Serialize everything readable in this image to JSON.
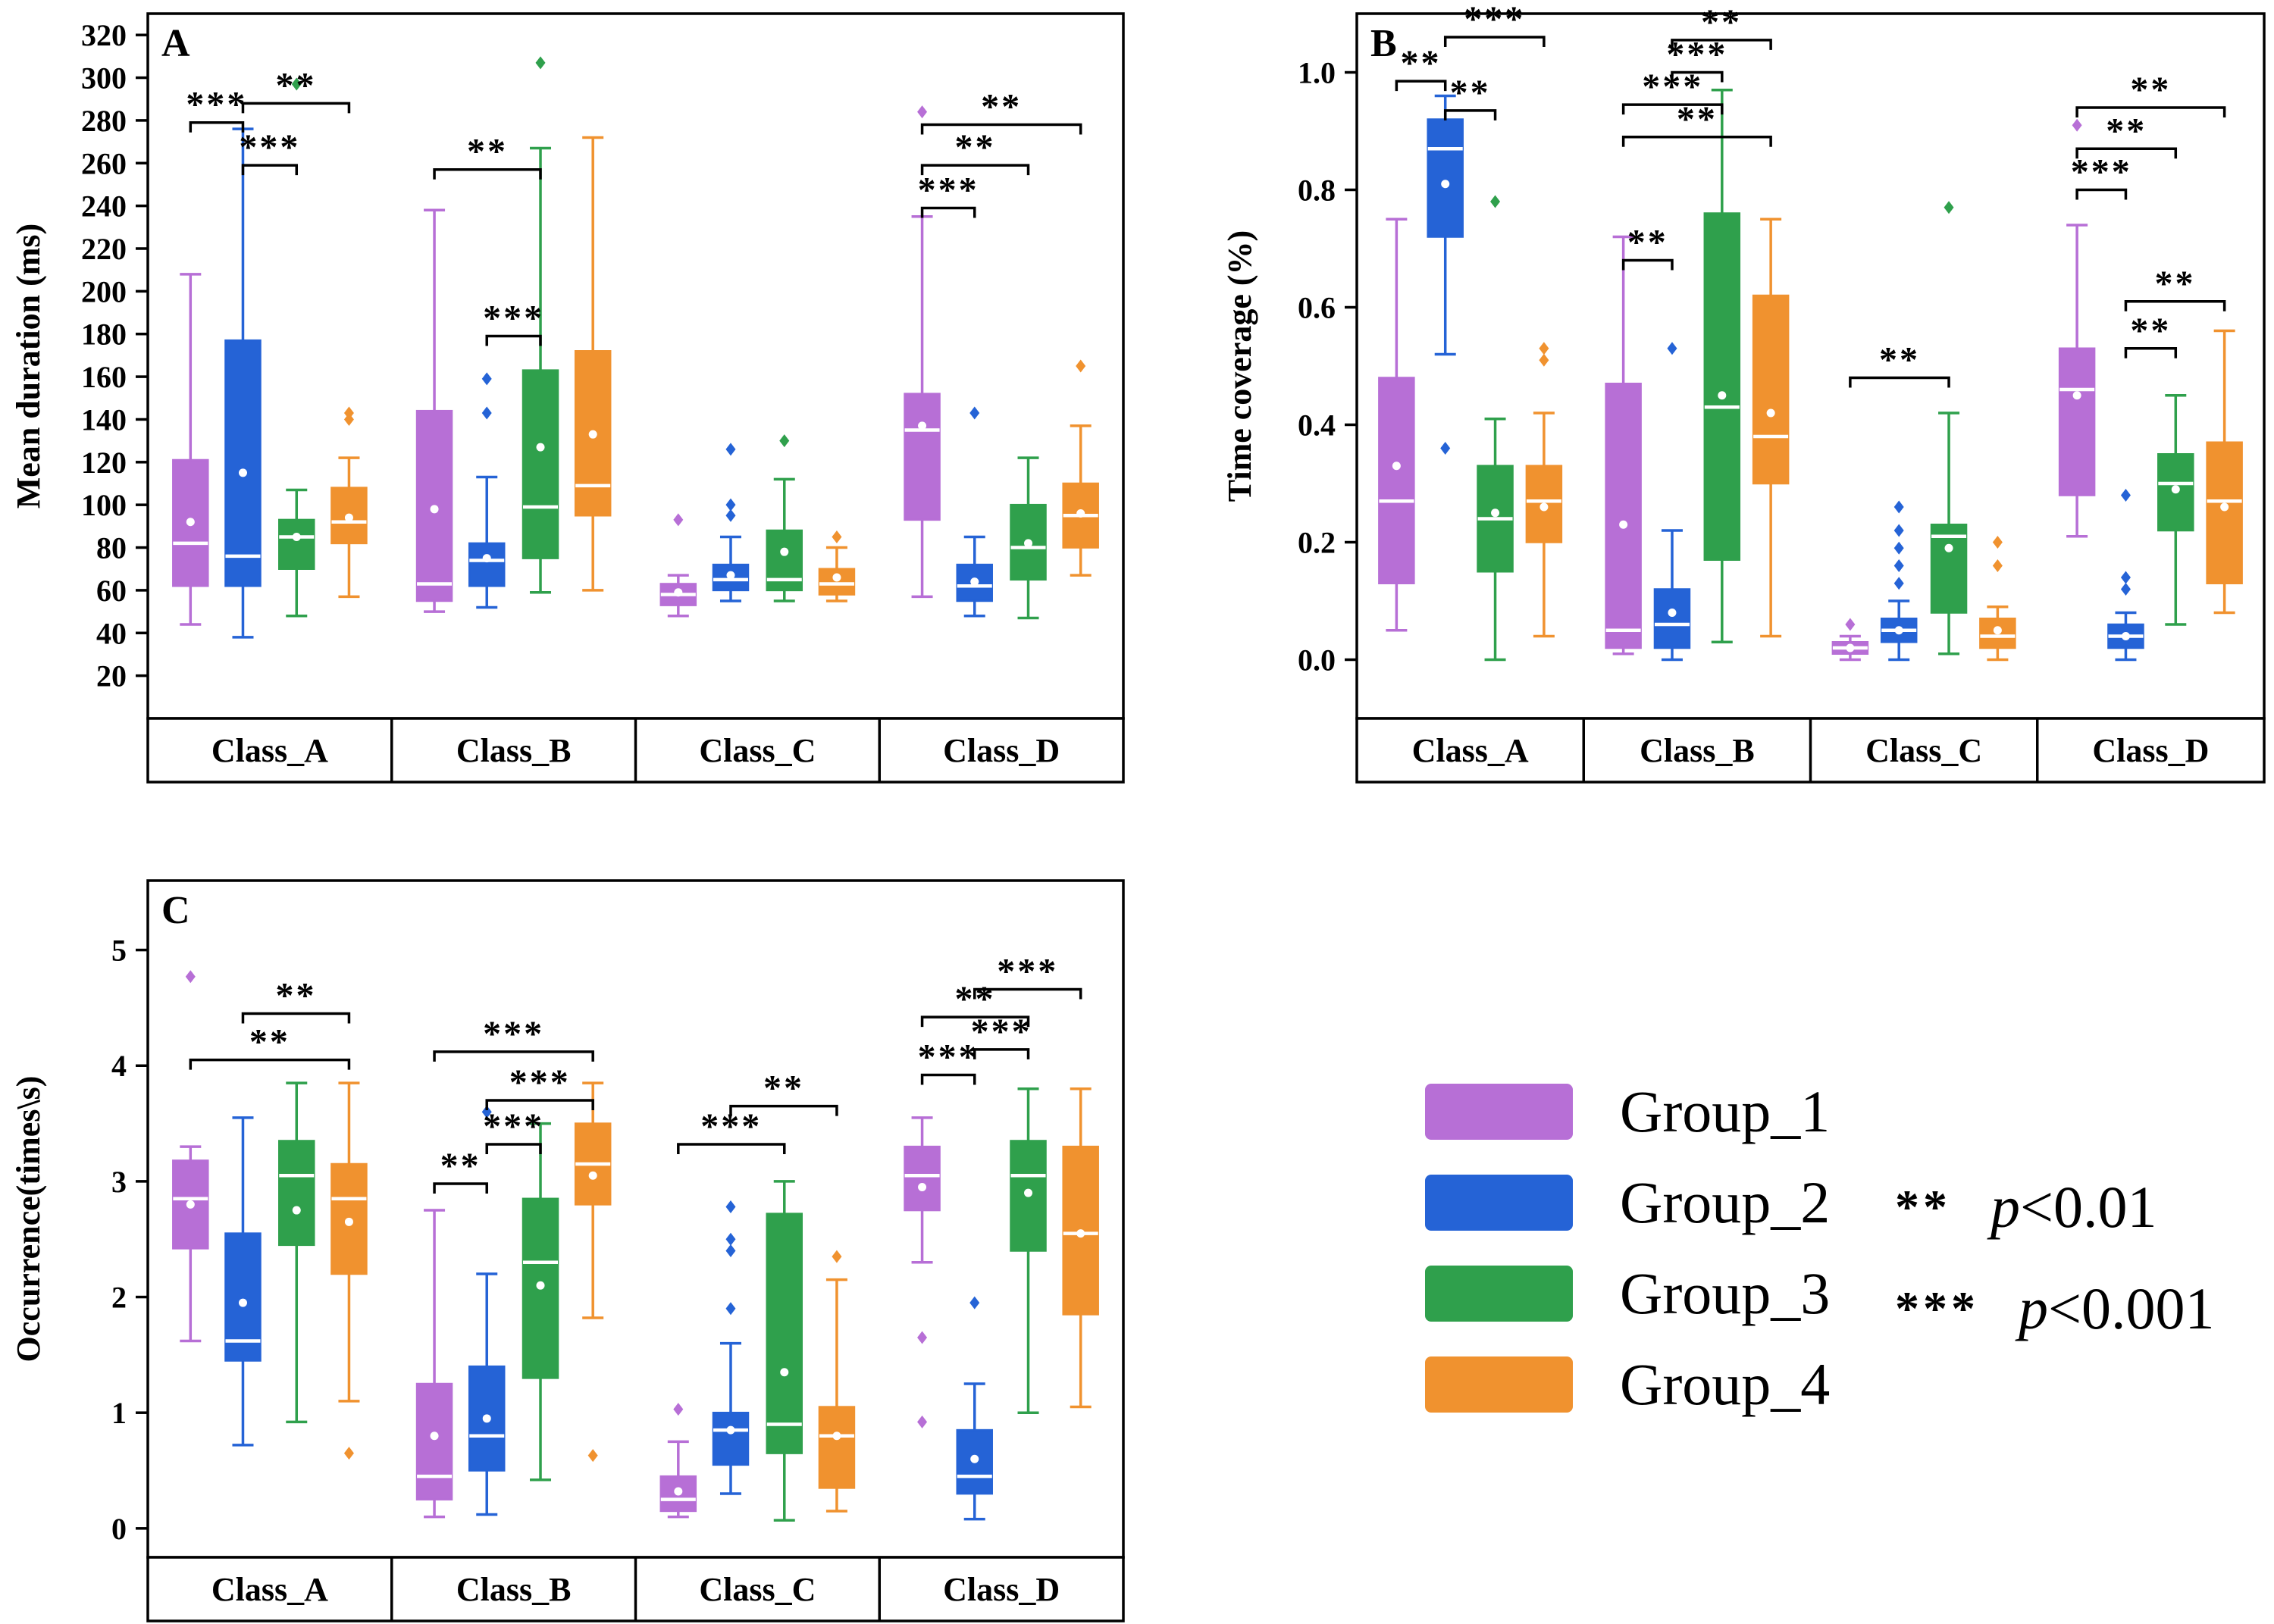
{
  "legend": {
    "items": [
      {
        "label": "Group_1",
        "color": "#B76FD6"
      },
      {
        "label": "Group_2",
        "color": "#2563D6"
      },
      {
        "label": "Group_3",
        "color": "#2FA04C"
      },
      {
        "label": "Group_4",
        "color": "#F0922F"
      }
    ],
    "significance": [
      {
        "symbol": "**",
        "p": "p",
        "rest": "<0.01"
      },
      {
        "symbol": "***",
        "p": "p",
        "rest": "<0.001"
      }
    ]
  },
  "chart_data": [
    {
      "type": "box",
      "panel_label": "A",
      "ylabel": "Mean duration (ms)",
      "ylim": [
        0,
        330
      ],
      "yticks": [
        20,
        40,
        60,
        80,
        100,
        120,
        140,
        160,
        180,
        200,
        220,
        240,
        260,
        280,
        300,
        320
      ],
      "categories": [
        "Class_A",
        "Class_B",
        "Class_C",
        "Class_D"
      ],
      "series": [
        {
          "name": "Group_1",
          "color": "#B76FD6",
          "data": [
            {
              "lo": 44,
              "q1": 62,
              "med": 82,
              "q3": 121,
              "hi": 208,
              "mean": 92,
              "out": []
            },
            {
              "lo": 50,
              "q1": 55,
              "med": 63,
              "q3": 144,
              "hi": 238,
              "mean": 98,
              "out": []
            },
            {
              "lo": 48,
              "q1": 53,
              "med": 58,
              "q3": 63,
              "hi": 67,
              "mean": 59,
              "out": [
                93
              ]
            },
            {
              "lo": 57,
              "q1": 93,
              "med": 135,
              "q3": 152,
              "hi": 235,
              "mean": 137,
              "out": [
                284
              ]
            }
          ]
        },
        {
          "name": "Group_2",
          "color": "#2563D6",
          "data": [
            {
              "lo": 38,
              "q1": 62,
              "med": 76,
              "q3": 177,
              "hi": 276,
              "mean": 115,
              "out": []
            },
            {
              "lo": 52,
              "q1": 62,
              "med": 74,
              "q3": 82,
              "hi": 113,
              "mean": 75,
              "out": [
                143,
                159
              ]
            },
            {
              "lo": 55,
              "q1": 60,
              "med": 65,
              "q3": 72,
              "hi": 85,
              "mean": 67,
              "out": [
                95,
                100,
                126
              ]
            },
            {
              "lo": 48,
              "q1": 55,
              "med": 62,
              "q3": 72,
              "hi": 85,
              "mean": 64,
              "out": [
                143
              ]
            }
          ]
        },
        {
          "name": "Group_3",
          "color": "#2FA04C",
          "data": [
            {
              "lo": 48,
              "q1": 70,
              "med": 85,
              "q3": 93,
              "hi": 107,
              "mean": 85,
              "out": [
                297
              ]
            },
            {
              "lo": 59,
              "q1": 75,
              "med": 99,
              "q3": 163,
              "hi": 267,
              "mean": 127,
              "out": [
                307
              ]
            },
            {
              "lo": 55,
              "q1": 60,
              "med": 65,
              "q3": 88,
              "hi": 112,
              "mean": 78,
              "out": [
                130
              ]
            },
            {
              "lo": 47,
              "q1": 65,
              "med": 80,
              "q3": 100,
              "hi": 122,
              "mean": 82,
              "out": []
            }
          ]
        },
        {
          "name": "Group_4",
          "color": "#F0922F",
          "data": [
            {
              "lo": 57,
              "q1": 82,
              "med": 92,
              "q3": 108,
              "hi": 122,
              "mean": 94,
              "out": [
                140,
                143
              ]
            },
            {
              "lo": 60,
              "q1": 95,
              "med": 109,
              "q3": 172,
              "hi": 272,
              "mean": 133,
              "out": []
            },
            {
              "lo": 55,
              "q1": 58,
              "med": 63,
              "q3": 70,
              "hi": 80,
              "mean": 66,
              "out": [
                85
              ]
            },
            {
              "lo": 67,
              "q1": 80,
              "med": 95,
              "q3": 110,
              "hi": 137,
              "mean": 96,
              "out": [
                165
              ]
            }
          ]
        }
      ],
      "annotations": [
        {
          "c": 0,
          "a": 0,
          "b": 1,
          "s": "***",
          "y": 279
        },
        {
          "c": 0,
          "a": 1,
          "b": 3,
          "s": "**",
          "y": 288
        },
        {
          "c": 0,
          "a": 1,
          "b": 2,
          "s": "***",
          "y": 259
        },
        {
          "c": 1,
          "a": 0,
          "b": 2,
          "s": "**",
          "y": 257
        },
        {
          "c": 1,
          "a": 1,
          "b": 2,
          "s": "***",
          "y": 179
        },
        {
          "c": 3,
          "a": 0,
          "b": 1,
          "s": "***",
          "y": 239
        },
        {
          "c": 3,
          "a": 0,
          "b": 2,
          "s": "**",
          "y": 259
        },
        {
          "c": 3,
          "a": 0,
          "b": 3,
          "s": "**",
          "y": 278
        }
      ]
    },
    {
      "type": "box",
      "panel_label": "B",
      "ylabel": "Time coverage (%)",
      "ylim": [
        -0.1,
        1.1
      ],
      "yticks": [
        0.0,
        0.2,
        0.4,
        0.6,
        0.8,
        1.0
      ],
      "categories": [
        "Class_A",
        "Class_B",
        "Class_C",
        "Class_D"
      ],
      "series": [
        {
          "name": "Group_1",
          "color": "#B76FD6",
          "data": [
            {
              "lo": 0.05,
              "q1": 0.13,
              "med": 0.27,
              "q3": 0.48,
              "hi": 0.75,
              "mean": 0.33,
              "out": []
            },
            {
              "lo": 0.01,
              "q1": 0.02,
              "med": 0.05,
              "q3": 0.47,
              "hi": 0.72,
              "mean": 0.23,
              "out": []
            },
            {
              "lo": 0.0,
              "q1": 0.01,
              "med": 0.02,
              "q3": 0.03,
              "hi": 0.04,
              "mean": 0.02,
              "out": [
                0.06
              ]
            },
            {
              "lo": 0.21,
              "q1": 0.28,
              "med": 0.46,
              "q3": 0.53,
              "hi": 0.74,
              "mean": 0.45,
              "out": [
                0.91
              ]
            }
          ]
        },
        {
          "name": "Group_2",
          "color": "#2563D6",
          "data": [
            {
              "lo": 0.52,
              "q1": 0.72,
              "med": 0.87,
              "q3": 0.92,
              "hi": 0.96,
              "mean": 0.81,
              "out": [
                0.36
              ]
            },
            {
              "lo": 0.0,
              "q1": 0.02,
              "med": 0.06,
              "q3": 0.12,
              "hi": 0.22,
              "mean": 0.08,
              "out": [
                0.53
              ]
            },
            {
              "lo": 0.0,
              "q1": 0.03,
              "med": 0.05,
              "q3": 0.07,
              "hi": 0.1,
              "mean": 0.05,
              "out": [
                0.13,
                0.16,
                0.19,
                0.22,
                0.26
              ]
            },
            {
              "lo": 0.0,
              "q1": 0.02,
              "med": 0.04,
              "q3": 0.06,
              "hi": 0.08,
              "mean": 0.04,
              "out": [
                0.12,
                0.14,
                0.28
              ]
            }
          ]
        },
        {
          "name": "Group_3",
          "color": "#2FA04C",
          "data": [
            {
              "lo": 0.0,
              "q1": 0.15,
              "med": 0.24,
              "q3": 0.33,
              "hi": 0.41,
              "mean": 0.25,
              "out": [
                0.78
              ]
            },
            {
              "lo": 0.03,
              "q1": 0.17,
              "med": 0.43,
              "q3": 0.76,
              "hi": 0.97,
              "mean": 0.45,
              "out": []
            },
            {
              "lo": 0.01,
              "q1": 0.08,
              "med": 0.21,
              "q3": 0.23,
              "hi": 0.42,
              "mean": 0.19,
              "out": [
                0.77
              ]
            },
            {
              "lo": 0.06,
              "q1": 0.22,
              "med": 0.3,
              "q3": 0.35,
              "hi": 0.45,
              "mean": 0.29,
              "out": []
            }
          ]
        },
        {
          "name": "Group_4",
          "color": "#F0922F",
          "data": [
            {
              "lo": 0.04,
              "q1": 0.2,
              "med": 0.27,
              "q3": 0.33,
              "hi": 0.42,
              "mean": 0.26,
              "out": [
                0.51,
                0.53
              ]
            },
            {
              "lo": 0.04,
              "q1": 0.3,
              "med": 0.38,
              "q3": 0.62,
              "hi": 0.75,
              "mean": 0.42,
              "out": []
            },
            {
              "lo": 0.0,
              "q1": 0.02,
              "med": 0.04,
              "q3": 0.07,
              "hi": 0.09,
              "mean": 0.05,
              "out": [
                0.16,
                0.2
              ]
            },
            {
              "lo": 0.08,
              "q1": 0.13,
              "med": 0.27,
              "q3": 0.37,
              "hi": 0.56,
              "mean": 0.26,
              "out": []
            }
          ]
        }
      ],
      "annotations": [
        {
          "c": 0,
          "a": 0,
          "b": 1,
          "s": "**",
          "y": 0.985
        },
        {
          "c": 0,
          "a": 1,
          "b": 2,
          "s": "**",
          "y": 0.935
        },
        {
          "c": 0,
          "a": 1,
          "b": 3,
          "s": "***",
          "y": 1.06
        },
        {
          "c": 1,
          "a": 0,
          "b": 1,
          "s": "**",
          "y": 0.68
        },
        {
          "c": 1,
          "a": 0,
          "b": 3,
          "s": "**",
          "y": 0.89
        },
        {
          "c": 1,
          "a": 0,
          "b": 2,
          "s": "***",
          "y": 0.945
        },
        {
          "c": 1,
          "a": 1,
          "b": 2,
          "s": "***",
          "y": 1.0
        },
        {
          "c": 1,
          "a": 1,
          "b": 3,
          "s": "**",
          "y": 1.055
        },
        {
          "c": 2,
          "a": 0,
          "b": 2,
          "s": "**",
          "y": 0.48
        },
        {
          "c": 3,
          "a": 0,
          "b": 1,
          "s": "***",
          "y": 0.8
        },
        {
          "c": 3,
          "a": 0,
          "b": 2,
          "s": "**",
          "y": 0.87
        },
        {
          "c": 3,
          "a": 0,
          "b": 3,
          "s": "**",
          "y": 0.94
        },
        {
          "c": 3,
          "a": 1,
          "b": 2,
          "s": "**",
          "y": 0.53
        },
        {
          "c": 3,
          "a": 1,
          "b": 3,
          "s": "**",
          "y": 0.61
        }
      ]
    },
    {
      "type": "box",
      "panel_label": "C",
      "ylabel": "Occurrence(times\\s)",
      "ylim": [
        -0.25,
        5.6
      ],
      "yticks": [
        0,
        1,
        2,
        3,
        4,
        5
      ],
      "categories": [
        "Class_A",
        "Class_B",
        "Class_C",
        "Class_D"
      ],
      "series": [
        {
          "name": "Group_1",
          "color": "#B76FD6",
          "data": [
            {
              "lo": 1.62,
              "q1": 2.42,
              "med": 2.85,
              "q3": 3.18,
              "hi": 3.3,
              "mean": 2.8,
              "out": [
                4.77
              ]
            },
            {
              "lo": 0.1,
              "q1": 0.25,
              "med": 0.45,
              "q3": 1.25,
              "hi": 2.75,
              "mean": 0.8,
              "out": []
            },
            {
              "lo": 0.1,
              "q1": 0.15,
              "med": 0.25,
              "q3": 0.45,
              "hi": 0.75,
              "mean": 0.32,
              "out": [
                1.03
              ]
            },
            {
              "lo": 2.3,
              "q1": 2.75,
              "med": 3.05,
              "q3": 3.3,
              "hi": 3.55,
              "mean": 2.95,
              "out": [
                0.92,
                1.65
              ]
            }
          ]
        },
        {
          "name": "Group_2",
          "color": "#2563D6",
          "data": [
            {
              "lo": 0.72,
              "q1": 1.45,
              "med": 1.62,
              "q3": 2.55,
              "hi": 3.55,
              "mean": 1.95,
              "out": []
            },
            {
              "lo": 0.12,
              "q1": 0.5,
              "med": 0.8,
              "q3": 1.4,
              "hi": 2.2,
              "mean": 0.95,
              "out": [
                3.6
              ]
            },
            {
              "lo": 0.3,
              "q1": 0.55,
              "med": 0.85,
              "q3": 1.0,
              "hi": 1.6,
              "mean": 0.85,
              "out": [
                1.9,
                2.4,
                2.5,
                2.78
              ]
            },
            {
              "lo": 0.08,
              "q1": 0.3,
              "med": 0.45,
              "q3": 0.85,
              "hi": 1.25,
              "mean": 0.6,
              "out": [
                1.95
              ]
            }
          ]
        },
        {
          "name": "Group_3",
          "color": "#2FA04C",
          "data": [
            {
              "lo": 0.92,
              "q1": 2.45,
              "med": 3.05,
              "q3": 3.35,
              "hi": 3.85,
              "mean": 2.75,
              "out": []
            },
            {
              "lo": 0.42,
              "q1": 1.3,
              "med": 2.3,
              "q3": 2.85,
              "hi": 3.5,
              "mean": 2.1,
              "out": []
            },
            {
              "lo": 0.07,
              "q1": 0.65,
              "med": 0.9,
              "q3": 2.72,
              "hi": 3.0,
              "mean": 1.35,
              "out": []
            },
            {
              "lo": 1.0,
              "q1": 2.4,
              "med": 3.05,
              "q3": 3.35,
              "hi": 3.8,
              "mean": 2.9,
              "out": []
            }
          ]
        },
        {
          "name": "Group_4",
          "color": "#F0922F",
          "data": [
            {
              "lo": 1.1,
              "q1": 2.2,
              "med": 2.85,
              "q3": 3.15,
              "hi": 3.85,
              "mean": 2.65,
              "out": [
                0.65
              ]
            },
            {
              "lo": 1.82,
              "q1": 2.8,
              "med": 3.15,
              "q3": 3.5,
              "hi": 3.85,
              "mean": 3.05,
              "out": [
                0.63
              ]
            },
            {
              "lo": 0.15,
              "q1": 0.35,
              "med": 0.8,
              "q3": 1.05,
              "hi": 2.15,
              "mean": 0.8,
              "out": [
                2.35
              ]
            },
            {
              "lo": 1.05,
              "q1": 1.85,
              "med": 2.55,
              "q3": 3.3,
              "hi": 3.8,
              "mean": 2.55,
              "out": []
            }
          ]
        }
      ],
      "annotations": [
        {
          "c": 0,
          "a": 0,
          "b": 3,
          "s": "**",
          "y": 4.05
        },
        {
          "c": 0,
          "a": 1,
          "b": 3,
          "s": "**",
          "y": 4.45
        },
        {
          "c": 1,
          "a": 0,
          "b": 1,
          "s": "**",
          "y": 2.98
        },
        {
          "c": 1,
          "a": 1,
          "b": 2,
          "s": "***",
          "y": 3.32
        },
        {
          "c": 1,
          "a": 1,
          "b": 3,
          "s": "***",
          "y": 3.7
        },
        {
          "c": 1,
          "a": 0,
          "b": 3,
          "s": "***",
          "y": 4.12
        },
        {
          "c": 2,
          "a": 0,
          "b": 2,
          "s": "***",
          "y": 3.32
        },
        {
          "c": 2,
          "a": 1,
          "b": 3,
          "s": "**",
          "y": 3.65
        },
        {
          "c": 3,
          "a": 0,
          "b": 1,
          "s": "***",
          "y": 3.92
        },
        {
          "c": 3,
          "a": 1,
          "b": 2,
          "s": "***",
          "y": 4.14
        },
        {
          "c": 3,
          "a": 0,
          "b": 2,
          "s": "**",
          "y": 4.42
        },
        {
          "c": 3,
          "a": 1,
          "b": 3,
          "s": "***",
          "y": 4.66
        }
      ]
    }
  ]
}
